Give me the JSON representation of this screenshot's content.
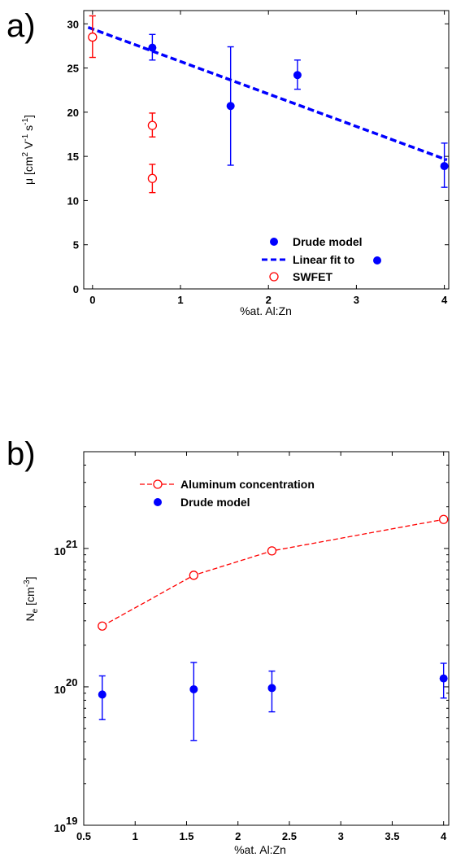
{
  "chart_data": [
    {
      "panel": "a)",
      "type": "scatter",
      "xlabel": "%at. Al:Zn",
      "ylabel_main": "μ [cm",
      "ylabel_sup1": "2",
      "ylabel_mid": " V",
      "ylabel_sup2": "-1",
      "ylabel_mid2": " s",
      "ylabel_sup3": "-1",
      "ylabel_end": "]",
      "xlim": [
        -0.1,
        4.05
      ],
      "ylim": [
        0,
        31.5
      ],
      "xticks": [
        "0",
        "1",
        "2",
        "3",
        "4"
      ],
      "xtick_values": [
        0,
        1,
        2,
        3,
        4
      ],
      "yticks": [
        "0",
        "5",
        "10",
        "15",
        "20",
        "25",
        "30"
      ],
      "ytick_values": [
        0,
        5,
        10,
        15,
        20,
        25,
        30
      ],
      "legend_position": "lower-right",
      "series": [
        {
          "name": "Drude model",
          "marker": "filled-circle",
          "color": "#0000ff",
          "points": [
            {
              "x": 0.68,
              "y": 27.3,
              "ylow": 25.9,
              "yhigh": 28.8
            },
            {
              "x": 1.57,
              "y": 20.7,
              "ylow": 14.0,
              "yhigh": 27.4
            },
            {
              "x": 2.33,
              "y": 24.2,
              "ylow": 22.6,
              "yhigh": 25.9
            },
            {
              "x": 4.0,
              "y": 13.9,
              "ylow": 11.5,
              "yhigh": 16.5
            }
          ]
        },
        {
          "name": "Linear fit to",
          "marker": "dashed-line",
          "color": "#0000ff",
          "line": [
            {
              "x": -0.05,
              "y": 29.6
            },
            {
              "x": 4.03,
              "y": 14.6
            }
          ]
        },
        {
          "name": "SWFET",
          "marker": "open-circle",
          "color": "#ff0000",
          "points": [
            {
              "x": 0.0,
              "y": 28.5,
              "ylow": 26.2,
              "yhigh": 30.9
            },
            {
              "x": 0.68,
              "y": 18.5,
              "ylow": 17.2,
              "yhigh": 19.9
            },
            {
              "x": 0.68,
              "y": 12.5,
              "ylow": 10.9,
              "yhigh": 14.1
            }
          ]
        }
      ]
    },
    {
      "panel": "b)",
      "type": "scatter",
      "scale_y": "log",
      "xlabel": "%at. Al:Zn",
      "ylabel_main": "N",
      "ylabel_sub": "e",
      "ylabel_rest": " [cm",
      "ylabel_sup": "-3",
      "ylabel_end": "]",
      "xlim": [
        0.5,
        4.05
      ],
      "ylim": [
        1e+19,
        5e+21
      ],
      "xticks": [
        "0.5",
        "1",
        "1.5",
        "2",
        "2.5",
        "3",
        "3.5",
        "4"
      ],
      "xtick_values": [
        0.5,
        1,
        1.5,
        2,
        2.5,
        3,
        3.5,
        4
      ],
      "yticks": [
        {
          "base": "10",
          "exp": "19",
          "value": 1e+19
        },
        {
          "base": "10",
          "exp": "20",
          "value": 1e+20
        },
        {
          "base": "10",
          "exp": "21",
          "value": 1e+21
        }
      ],
      "legend_position": "top-left",
      "series": [
        {
          "name": "Aluminum concentration",
          "marker": "open-circle-dashed-line",
          "color": "#ff0000",
          "points": [
            {
              "x": 0.68,
              "y": 2.75e+20
            },
            {
              "x": 1.57,
              "y": 6.4e+20
            },
            {
              "x": 2.33,
              "y": 9.6e+20
            },
            {
              "x": 4.0,
              "y": 1.62e+21
            }
          ]
        },
        {
          "name": "Drude model",
          "marker": "filled-circle",
          "color": "#0000ff",
          "points": [
            {
              "x": 0.68,
              "y": 8.8e+19,
              "ylow": 5.8e+19,
              "yhigh": 1.2e+20
            },
            {
              "x": 1.57,
              "y": 9.6e+19,
              "ylow": 4.1e+19,
              "yhigh": 1.5e+20
            },
            {
              "x": 2.33,
              "y": 9.8e+19,
              "ylow": 6.6e+19,
              "yhigh": 1.3e+20
            },
            {
              "x": 4.0,
              "y": 1.15e+20,
              "ylow": 8.3e+19,
              "yhigh": 1.48e+20
            }
          ]
        }
      ]
    }
  ]
}
